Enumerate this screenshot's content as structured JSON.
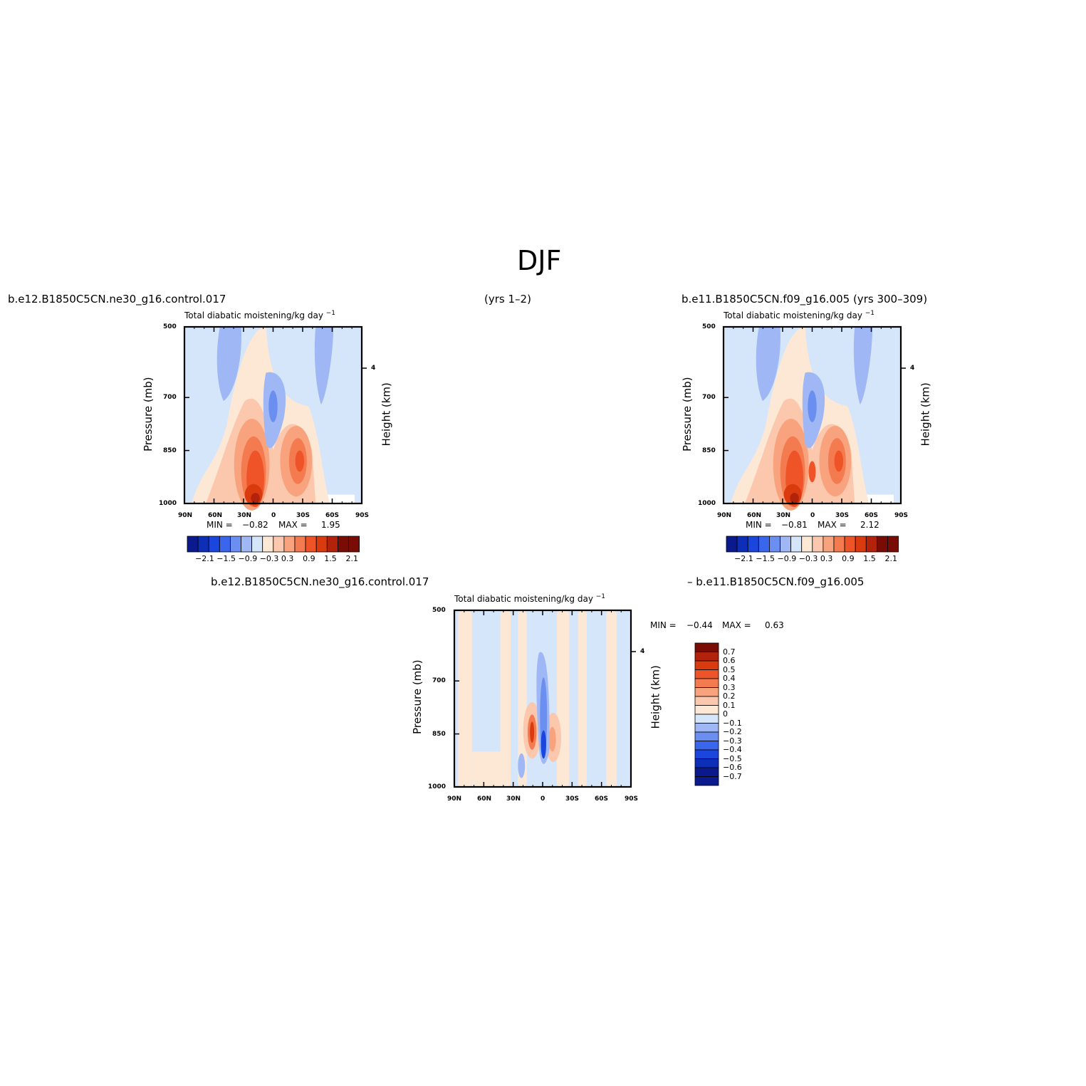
{
  "main_title": "DJF",
  "captions": {
    "left_case": "b.e12.B1850C5CN.ne30_g16.control.017",
    "left_years": "(yrs 1–2)",
    "right_case": "b.e11.B1850C5CN.f09_g16.005 (yrs 300–309)",
    "diff_left": "b.e12.B1850C5CN.ne30_g16.control.017",
    "diff_right": "– b.e11.B1850C5CN.f09_g16.005"
  },
  "colors": {
    "c1": "#0a1a8c",
    "c2": "#0d2fb8",
    "c3": "#1a46de",
    "c4": "#3a66ee",
    "c5": "#6b8ff0",
    "c6": "#9fb8f5",
    "c7": "#d5e6fb",
    "c8": "#fde8d6",
    "c9": "#fbc8ad",
    "c10": "#f8a37e",
    "c11": "#f47b4f",
    "c12": "#ee5427",
    "c13": "#d93a0e",
    "c14": "#b3230b",
    "c15": "#7a0c06"
  },
  "chart_data": [
    {
      "type": "heatmap",
      "title": "Total diabatic moistening/kg day",
      "title_superscript": "−1",
      "ylabel": "Pressure (mb)",
      "ylabel_right": "Height (km)",
      "x_ticks": [
        "90N",
        "60N",
        "30N",
        "0",
        "30S",
        "60S",
        "90S"
      ],
      "y_ticks": [
        "500",
        "700",
        "850",
        "1000"
      ],
      "y_right_ticks": [
        "4"
      ],
      "xlim": [
        -90,
        90
      ],
      "ylim": [
        1000,
        500
      ],
      "min_label": "MIN =",
      "min_value": "−0.82",
      "max_label": "MAX =",
      "max_value": "1.95",
      "colorbar_labels": [
        "−2.1",
        "−1.5",
        "−0.9",
        "−0.3",
        "0.3",
        "0.9",
        "1.5",
        "2.1"
      ]
    },
    {
      "type": "heatmap",
      "title": "Total diabatic moistening/kg day",
      "title_superscript": "−1",
      "ylabel": "Pressure (mb)",
      "ylabel_right": "Height (km)",
      "x_ticks": [
        "90N",
        "60N",
        "30N",
        "0",
        "30S",
        "60S",
        "90S"
      ],
      "y_ticks": [
        "500",
        "700",
        "850",
        "1000"
      ],
      "y_right_ticks": [
        "4"
      ],
      "xlim": [
        -90,
        90
      ],
      "ylim": [
        1000,
        500
      ],
      "min_label": "MIN =",
      "min_value": "−0.81",
      "max_label": "MAX =",
      "max_value": "2.12",
      "colorbar_labels": [
        "−2.1",
        "−1.5",
        "−0.9",
        "−0.3",
        "0.3",
        "0.9",
        "1.5",
        "2.1"
      ]
    },
    {
      "type": "heatmap",
      "title": "Total diabatic moistening/kg day",
      "title_superscript": "−1",
      "ylabel": "Pressure (mb)",
      "ylabel_right": "Height (km)",
      "x_ticks": [
        "90N",
        "60N",
        "30N",
        "0",
        "30S",
        "60S",
        "90S"
      ],
      "y_ticks": [
        "500",
        "700",
        "850",
        "1000"
      ],
      "y_right_ticks": [
        "4"
      ],
      "xlim": [
        -90,
        90
      ],
      "ylim": [
        1000,
        500
      ],
      "min_label": "MIN =",
      "min_value": "−0.44",
      "max_label": "MAX =",
      "max_value": "0.63",
      "colorbar_labels": [
        "0.7",
        "0.6",
        "0.5",
        "0.4",
        "0.3",
        "0.2",
        "0.1",
        "0",
        "−0.1",
        "−0.2",
        "−0.3",
        "−0.4",
        "−0.5",
        "−0.6",
        "−0.7"
      ]
    }
  ]
}
